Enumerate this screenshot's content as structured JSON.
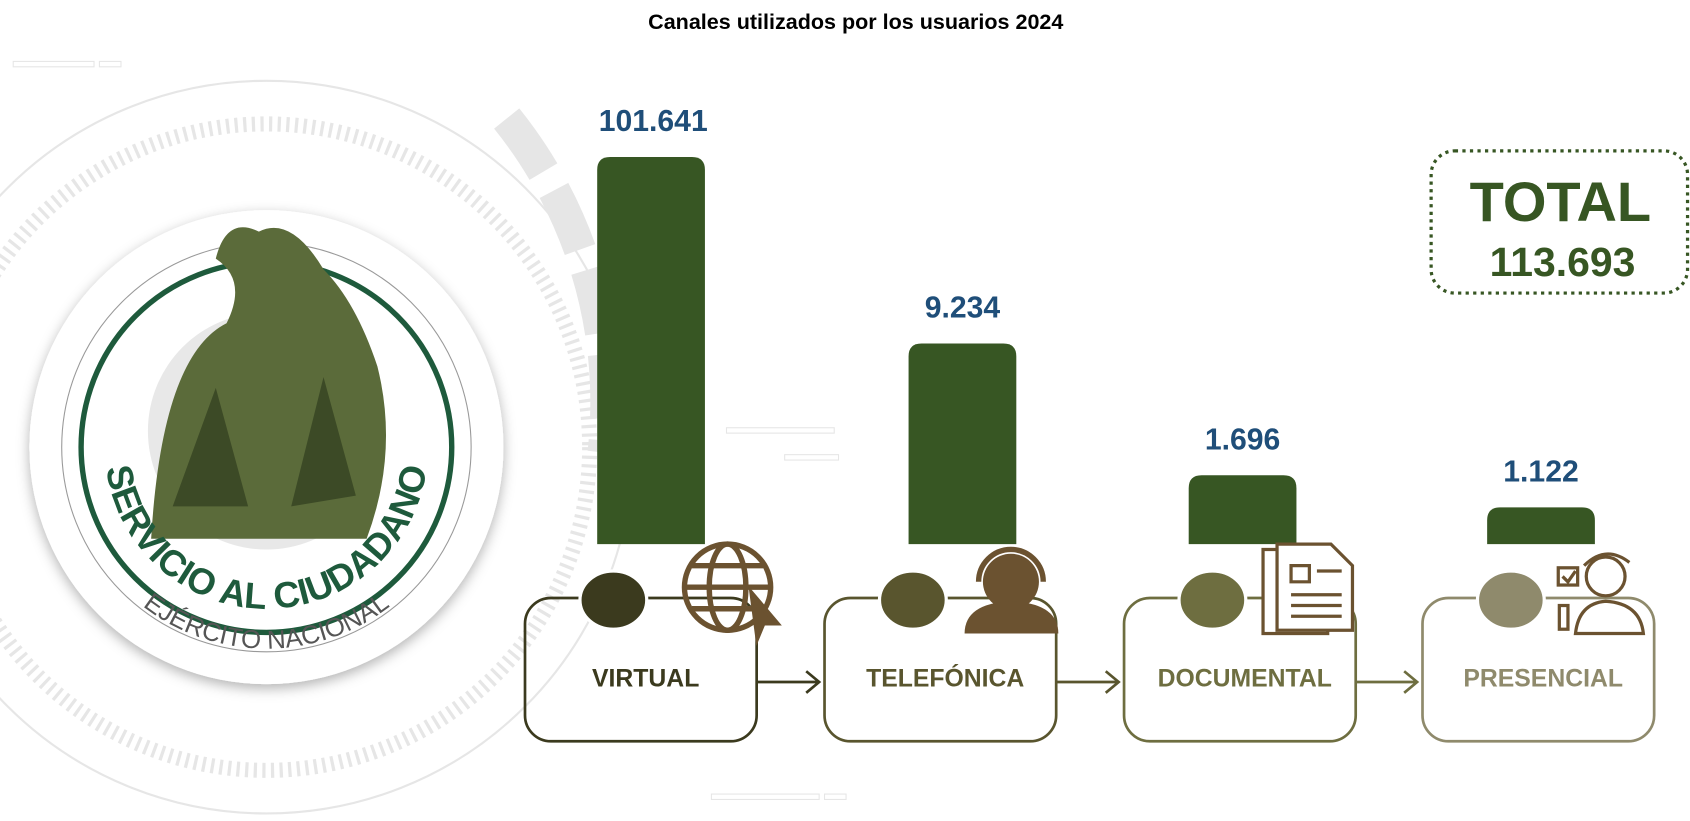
{
  "chart_data": {
    "type": "bar",
    "title": "Canales utilizados por los usuarios 2024",
    "categories": [
      "VIRTUAL",
      "TELEFÓNICA",
      "DOCUMENTAL",
      "PRESENCIAL"
    ],
    "values": [
      101641,
      9234,
      1696,
      1122
    ],
    "value_labels": [
      "101.641",
      "9.234",
      "1.696",
      "1.122"
    ],
    "color": "#375623",
    "value_label_color": "#1f4e79",
    "label_colors": [
      "#3b3a1e",
      "#59552e",
      "#6e6e40",
      "#8f8a6c"
    ],
    "log_scale": true,
    "ylim": [
      700,
      110000
    ],
    "total": {
      "label": "TOTAL",
      "value": "113.693"
    },
    "logo": {
      "title": "SERVICIO AL CIUDADANO",
      "subtitle": "EJÉRCITO NACIONAL"
    }
  }
}
